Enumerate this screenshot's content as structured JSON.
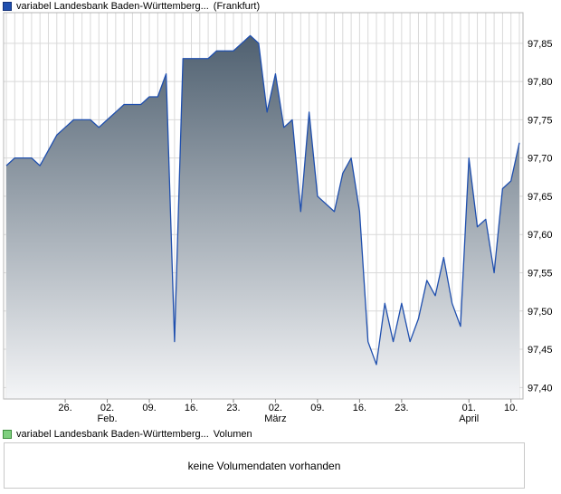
{
  "legend": {
    "price_name": "variabel Landesbank Baden-Württemberg...",
    "price_exchange": "(Frankfurt)",
    "volume_name": "variabel Landesbank Baden-Württemberg...",
    "volume_suffix": "Volumen"
  },
  "volume": {
    "message": "keine Volumendaten vorhanden"
  },
  "colors": {
    "line": "#1f4fae",
    "area_top": "#4f6070",
    "area_bottom": "#f4f5f7",
    "grid": "#d9d9d9"
  },
  "chart_data": {
    "type": "area",
    "series": [
      {
        "values": [
          97.69,
          97.7,
          97.7,
          97.7,
          97.69,
          97.71,
          97.73,
          97.74,
          97.75,
          97.75,
          97.75,
          97.74,
          97.75,
          97.76,
          97.77,
          97.77,
          97.77,
          97.78,
          97.78,
          97.81,
          97.46,
          97.83,
          97.83,
          97.83,
          97.83,
          97.84,
          97.84,
          97.84,
          97.85,
          97.86,
          97.85,
          97.76,
          97.81,
          97.74,
          97.75,
          97.63,
          97.76,
          97.65,
          97.64,
          97.63,
          97.68,
          97.7,
          97.63,
          97.46,
          97.43,
          97.51,
          97.46,
          97.51,
          97.46,
          97.49,
          97.54,
          97.52,
          97.57,
          97.51,
          97.48,
          97.7,
          97.61,
          97.62,
          97.55,
          97.66,
          97.67,
          97.72
        ]
      }
    ],
    "y_ticks": [
      "97,85",
      "97,80",
      "97,75",
      "97,70",
      "97,65",
      "97,60",
      "97,55",
      "97,50",
      "97,45",
      "97,40"
    ],
    "y_tick_values": [
      97.85,
      97.8,
      97.75,
      97.7,
      97.65,
      97.6,
      97.55,
      97.5,
      97.45,
      97.4
    ],
    "ylim": [
      97.385,
      97.89
    ],
    "x_ticks": [
      {
        "day": "26.",
        "month": "",
        "pos": 7
      },
      {
        "day": "02.",
        "month": "Feb.",
        "pos": 12
      },
      {
        "day": "09.",
        "month": "",
        "pos": 17
      },
      {
        "day": "16.",
        "month": "",
        "pos": 22
      },
      {
        "day": "23.",
        "month": "",
        "pos": 27
      },
      {
        "day": "02.",
        "month": "März",
        "pos": 32
      },
      {
        "day": "09.",
        "month": "",
        "pos": 37
      },
      {
        "day": "16.",
        "month": "",
        "pos": 42
      },
      {
        "day": "23.",
        "month": "",
        "pos": 47
      },
      {
        "day": "01.",
        "month": "April",
        "pos": 55
      },
      {
        "day": "10.",
        "month": "",
        "pos": 60
      }
    ],
    "grid": true
  }
}
